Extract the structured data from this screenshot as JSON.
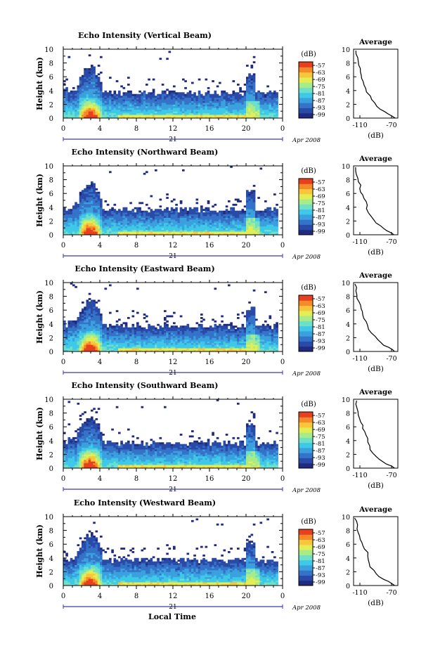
{
  "chart_data": [
    {
      "type": "heatmap",
      "title": "Echo Intensity (Vertical Beam)",
      "ylabel": "Height (km)",
      "xlim": [
        0,
        24
      ],
      "ylim": [
        0,
        10
      ],
      "x_ticks": [
        "0",
        "4",
        "8",
        "12",
        "16",
        "20",
        "0"
      ],
      "y_ticks": [
        "0",
        "2",
        "4",
        "6",
        "8",
        "10"
      ],
      "date_day": "21",
      "date_label": "Apr 2008",
      "colorbar": {
        "unit": "(dB)",
        "labels": [
          "-57",
          "-63",
          "-69",
          "-75",
          "-81",
          "-87",
          "-93",
          "-99"
        ]
      },
      "profile": {
        "title": "Average",
        "xlabel": "(dB)",
        "x_ticks": [
          "-110",
          "-70"
        ],
        "y_ticks": [
          "0",
          "2",
          "4",
          "6",
          "8",
          "10"
        ],
        "xlim": [
          -118,
          -62
        ],
        "points": [
          [
            -66,
            0
          ],
          [
            -69,
            0.3
          ],
          [
            -74,
            0.6
          ],
          [
            -79,
            0.9
          ],
          [
            -84,
            1.3
          ],
          [
            -88,
            1.7
          ],
          [
            -92,
            2.2
          ],
          [
            -95,
            2.7
          ],
          [
            -98,
            3.2
          ],
          [
            -101,
            3.8
          ],
          [
            -102,
            4.3
          ],
          [
            -104,
            4.8
          ],
          [
            -106,
            5.3
          ],
          [
            -107,
            5.8
          ],
          [
            -108,
            6.2
          ],
          [
            -109,
            6.7
          ],
          [
            -110,
            7.2
          ],
          [
            -111,
            7.7
          ],
          [
            -112,
            8.2
          ],
          [
            -113,
            8.8
          ],
          [
            -114,
            9.3
          ],
          [
            -115,
            9.8
          ]
        ]
      }
    },
    {
      "type": "heatmap",
      "title": "Echo Intensity (Northward Beam)",
      "ylabel": "Height (km)",
      "xlim": [
        0,
        24
      ],
      "ylim": [
        0,
        10
      ],
      "x_ticks": [
        "0",
        "4",
        "8",
        "12",
        "16",
        "20",
        "0"
      ],
      "y_ticks": [
        "0",
        "2",
        "4",
        "6",
        "8",
        "10"
      ],
      "date_day": "21",
      "date_label": "Apr 2008",
      "colorbar": {
        "unit": "(dB)",
        "labels": [
          "-57",
          "-63",
          "-69",
          "-75",
          "-81",
          "-87",
          "-93",
          "-99"
        ]
      },
      "profile": {
        "title": "Average",
        "xlabel": "(dB)",
        "x_ticks": [
          "-110",
          "-70"
        ],
        "y_ticks": [
          "0",
          "2",
          "4",
          "6",
          "8",
          "10"
        ],
        "xlim": [
          -118,
          -62
        ],
        "points": [
          [
            -66,
            0
          ],
          [
            -70,
            0.3
          ],
          [
            -75,
            0.6
          ],
          [
            -80,
            0.9
          ],
          [
            -85,
            1.3
          ],
          [
            -89,
            1.7
          ],
          [
            -93,
            2.2
          ],
          [
            -96,
            2.7
          ],
          [
            -99,
            3.2
          ],
          [
            -101,
            3.8
          ],
          [
            -101,
            4.3
          ],
          [
            -103,
            4.8
          ],
          [
            -105,
            5.3
          ],
          [
            -106,
            5.8
          ],
          [
            -108,
            6.2
          ],
          [
            -109,
            6.7
          ],
          [
            -110,
            7.2
          ],
          [
            -112,
            7.7
          ],
          [
            -113,
            8.2
          ],
          [
            -114,
            8.8
          ],
          [
            -115,
            9.3
          ],
          [
            -116,
            9.8
          ]
        ]
      }
    },
    {
      "type": "heatmap",
      "title": "Echo Intensity (Eastward Beam)",
      "ylabel": "Height (km)",
      "xlim": [
        0,
        24
      ],
      "ylim": [
        0,
        10
      ],
      "x_ticks": [
        "0",
        "4",
        "8",
        "12",
        "16",
        "20",
        "0"
      ],
      "y_ticks": [
        "0",
        "2",
        "4",
        "6",
        "8",
        "10"
      ],
      "date_day": "21",
      "date_label": "Apr 2008",
      "colorbar": {
        "unit": "(dB)",
        "labels": [
          "-57",
          "-63",
          "-69",
          "-75",
          "-81",
          "-87",
          "-93",
          "-99"
        ]
      },
      "profile": {
        "title": "Average",
        "xlabel": "(dB)",
        "x_ticks": [
          "-110",
          "-70"
        ],
        "y_ticks": [
          "0",
          "2",
          "4",
          "6",
          "8",
          "10"
        ],
        "xlim": [
          -118,
          -62
        ],
        "points": [
          [
            -65,
            0
          ],
          [
            -69,
            0.3
          ],
          [
            -74,
            0.6
          ],
          [
            -79,
            0.9
          ],
          [
            -84,
            1.3
          ],
          [
            -88,
            1.7
          ],
          [
            -92,
            2.2
          ],
          [
            -96,
            2.7
          ],
          [
            -99,
            3.2
          ],
          [
            -101,
            3.8
          ],
          [
            -103,
            4.3
          ],
          [
            -104,
            4.8
          ],
          [
            -106,
            5.3
          ],
          [
            -108,
            5.8
          ],
          [
            -109,
            6.2
          ],
          [
            -110,
            6.7
          ],
          [
            -112,
            7.2
          ],
          [
            -113,
            7.7
          ],
          [
            -113,
            8.2
          ],
          [
            -114,
            8.8
          ],
          [
            -115,
            9.3
          ],
          [
            -116,
            9.8
          ]
        ]
      }
    },
    {
      "type": "heatmap",
      "title": "Echo Intensity (Southward Beam)",
      "ylabel": "Height (km)",
      "xlim": [
        0,
        24
      ],
      "ylim": [
        0,
        10
      ],
      "x_ticks": [
        "0",
        "4",
        "8",
        "12",
        "16",
        "20",
        "0"
      ],
      "y_ticks": [
        "0",
        "2",
        "4",
        "6",
        "8",
        "10"
      ],
      "date_day": "21",
      "date_label": "Apr 2008",
      "colorbar": {
        "unit": "(dB)",
        "labels": [
          "-57",
          "-63",
          "-69",
          "-75",
          "-81",
          "-87",
          "-93",
          "-99"
        ]
      },
      "profile": {
        "title": "Average",
        "xlabel": "(dB)",
        "x_ticks": [
          "-110",
          "-70"
        ],
        "y_ticks": [
          "0",
          "2",
          "4",
          "6",
          "8",
          "10"
        ],
        "xlim": [
          -118,
          -62
        ],
        "points": [
          [
            -67,
            0
          ],
          [
            -71,
            0.3
          ],
          [
            -76,
            0.6
          ],
          [
            -81,
            0.9
          ],
          [
            -86,
            1.3
          ],
          [
            -90,
            1.7
          ],
          [
            -93,
            2.2
          ],
          [
            -96,
            2.7
          ],
          [
            -98,
            3.2
          ],
          [
            -99,
            3.8
          ],
          [
            -101,
            4.3
          ],
          [
            -102,
            4.8
          ],
          [
            -104,
            5.3
          ],
          [
            -106,
            5.8
          ],
          [
            -107,
            6.2
          ],
          [
            -108,
            6.7
          ],
          [
            -110,
            7.2
          ],
          [
            -111,
            7.7
          ],
          [
            -112,
            8.2
          ],
          [
            -113,
            8.8
          ],
          [
            -114,
            9.3
          ],
          [
            -115,
            9.8
          ]
        ]
      }
    },
    {
      "type": "heatmap",
      "title": "Echo Intensity (Westward Beam)",
      "ylabel": "Height (km)",
      "xlabel": "Local Time",
      "xlim": [
        0,
        24
      ],
      "ylim": [
        0,
        10
      ],
      "x_ticks": [
        "0",
        "4",
        "8",
        "12",
        "16",
        "20",
        "0"
      ],
      "y_ticks": [
        "0",
        "2",
        "4",
        "6",
        "8",
        "10"
      ],
      "date_day": "21",
      "date_label": "Apr 2008",
      "colorbar": {
        "unit": "(dB)",
        "labels": [
          "-57",
          "-63",
          "-69",
          "-75",
          "-81",
          "-87",
          "-93",
          "-99"
        ]
      },
      "profile": {
        "title": "Average",
        "xlabel": "(dB)",
        "x_ticks": [
          "-110",
          "-70"
        ],
        "y_ticks": [
          "0",
          "2",
          "4",
          "6",
          "8",
          "10"
        ],
        "xlim": [
          -118,
          -62
        ],
        "points": [
          [
            -66,
            0
          ],
          [
            -70,
            0.3
          ],
          [
            -75,
            0.6
          ],
          [
            -80,
            0.9
          ],
          [
            -85,
            1.3
          ],
          [
            -89,
            1.7
          ],
          [
            -93,
            2.2
          ],
          [
            -96,
            2.7
          ],
          [
            -98,
            3.2
          ],
          [
            -99,
            3.8
          ],
          [
            -100,
            4.3
          ],
          [
            -101,
            4.8
          ],
          [
            -103,
            5.3
          ],
          [
            -106,
            5.8
          ],
          [
            -108,
            6.2
          ],
          [
            -109,
            6.7
          ],
          [
            -111,
            7.2
          ],
          [
            -112,
            7.7
          ],
          [
            -113,
            8.2
          ],
          [
            -114,
            8.8
          ],
          [
            -115,
            9.3
          ],
          [
            -116,
            9.8
          ]
        ]
      }
    }
  ],
  "colors": {
    "colormap": [
      "#1f2a80",
      "#2a4aa8",
      "#3573c8",
      "#3aa0de",
      "#3fc9e8",
      "#6fe0c8",
      "#a8ec8a",
      "#e3ee55",
      "#f9c53a",
      "#f58a2a",
      "#e8401e"
    ],
    "axis": "#000000"
  }
}
